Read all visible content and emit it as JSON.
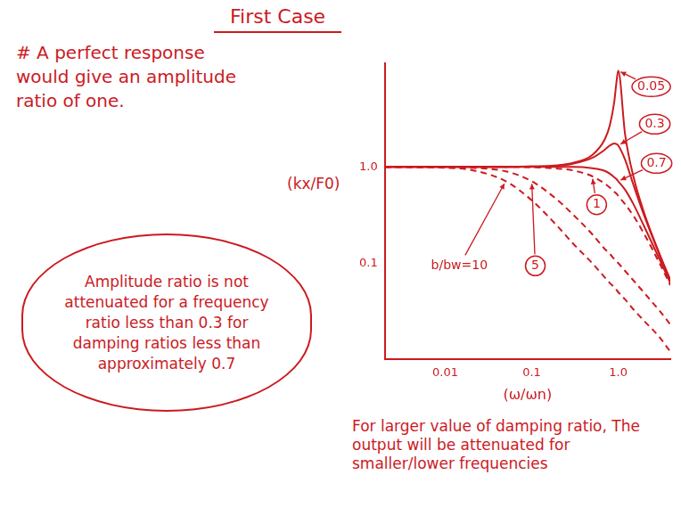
{
  "chart_data": {
    "type": "line",
    "title": "First Case",
    "x_label": "(ω/ωn)",
    "y_label": "(kx/F0)",
    "annotations": [
      "# A perfect response would give an amplitude ratio of one.",
      "Amplitude ratio is not attenuated for a frequency ratio less than 0.3 for damping ratios less than approximately 0.7",
      "For larger value of damping ratio, The output will be attenuated for smaller/lower frequencies"
    ],
    "x": [
      0.002,
      0.005,
      0.01,
      0.02,
      0.05,
      0.1,
      0.2,
      0.3,
      0.5,
      0.7,
      0.8,
      0.9,
      0.95,
      1,
      1.2,
      1.5,
      2,
      3,
      4
    ],
    "series": [
      {
        "name": "0.05",
        "color": "#cc1a1f",
        "line_style": "solid",
        "values": [
          1,
          1,
          1,
          1,
          1,
          1.01,
          1.04,
          1.1,
          1.33,
          1.94,
          2.71,
          4.76,
          7.35,
          10,
          2.19,
          0.79,
          0.33,
          0.125,
          0.067
        ]
      },
      {
        "name": "0.3",
        "color": "#cc1a1f",
        "line_style": "solid",
        "values": [
          1,
          1,
          1,
          1,
          1,
          1.01,
          1.03,
          1.08,
          1.24,
          1.51,
          1.67,
          1.75,
          1.73,
          1.67,
          1.19,
          0.65,
          0.31,
          0.122,
          0.066
        ]
      },
      {
        "name": "0.7",
        "color": "#cc1a1f",
        "line_style": "solid",
        "values": [
          1,
          1,
          1,
          1,
          1,
          1,
          1,
          1,
          0.97,
          0.91,
          0.85,
          0.78,
          0.75,
          0.71,
          0.58,
          0.41,
          0.24,
          0.11,
          0.062
        ]
      },
      {
        "name": "1",
        "color": "#cc1a1f",
        "line_style": "dashed",
        "values": [
          1,
          1,
          1,
          1,
          1,
          0.99,
          0.96,
          0.92,
          0.8,
          0.67,
          0.61,
          0.55,
          0.53,
          0.5,
          0.41,
          0.31,
          0.2,
          0.1,
          0.059
        ]
      },
      {
        "name": "5",
        "color": "#cc1a1f",
        "line_style": "dashed",
        "values": [
          1,
          1,
          0.99,
          0.98,
          0.9,
          0.71,
          0.45,
          0.32,
          0.2,
          0.14,
          0.125,
          0.11,
          0.105,
          0.1,
          0.083,
          0.066,
          0.049,
          0.032,
          0.023
        ]
      },
      {
        "name": "b/bw=10",
        "color": "#cc1a1f",
        "line_style": "dashed",
        "values": [
          1,
          0.99,
          0.98,
          0.93,
          0.71,
          0.45,
          0.24,
          0.16,
          0.1,
          0.071,
          0.062,
          0.056,
          0.053,
          0.05,
          0.042,
          0.033,
          0.025,
          0.017,
          0.012
        ]
      }
    ],
    "xlim": [
      0.002,
      4
    ],
    "ylim": [
      0.01,
      12
    ],
    "xticks": [
      0.01,
      0.1,
      {
        "value": 1,
        "label": "1.0"
      }
    ],
    "yticks": [
      0.1,
      {
        "value": 1,
        "label": "1.0"
      }
    ],
    "log": true,
    "grid": false
  }
}
